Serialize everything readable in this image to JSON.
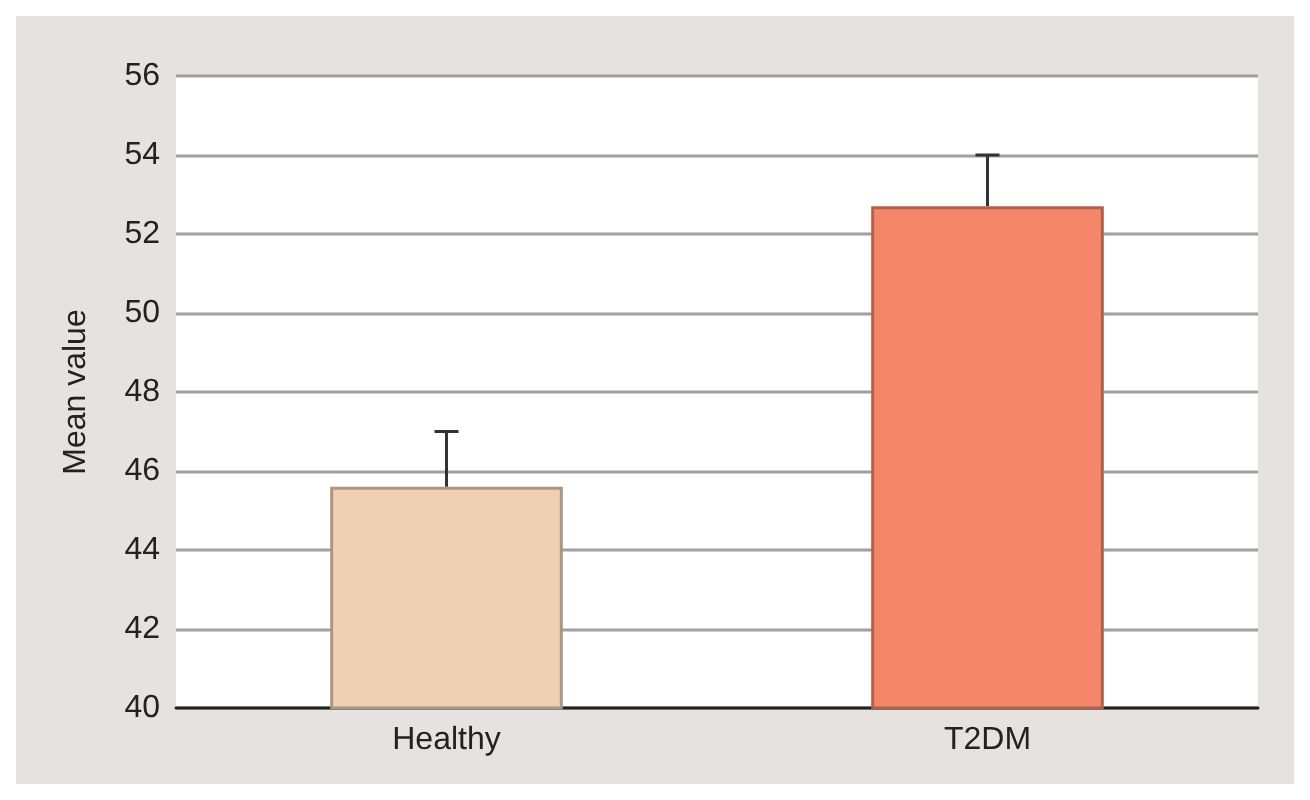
{
  "chart_data": {
    "type": "bar",
    "ylabel": "Mean value",
    "categories": [
      "Healthy",
      "T2DM"
    ],
    "values": [
      45.6,
      52.7
    ],
    "colors": [
      "#efd0b3",
      "#f48769"
    ],
    "errors": [
      [
        45.6,
        47.0
      ],
      [
        52.7,
        54.0
      ]
    ],
    "ylim": [
      40,
      56
    ],
    "yticks": [
      40,
      42,
      44,
      46,
      48,
      50,
      52,
      54,
      56
    ],
    "grid": "y"
  }
}
